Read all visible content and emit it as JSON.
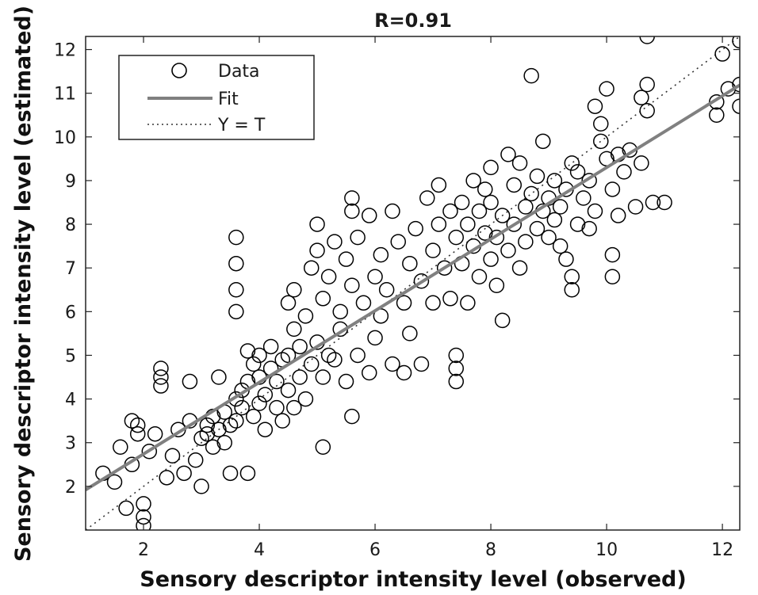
{
  "chart_data": {
    "type": "scatter",
    "title": "R=0.91",
    "xlabel": "Sensory descriptor intensity level (observed)",
    "ylabel": "Sensory descriptor intensity level (estimated)",
    "xlim": [
      1,
      12.3
    ],
    "ylim": [
      1,
      12.3
    ],
    "xticks": [
      2,
      4,
      6,
      8,
      10,
      12
    ],
    "yticks": [
      2,
      3,
      4,
      5,
      6,
      7,
      8,
      9,
      10,
      11,
      12
    ],
    "grid": false,
    "legend": {
      "placement": "top-left",
      "entries": [
        "Data",
        "Fit",
        "Y = T"
      ]
    },
    "fit_line": {
      "slope": 0.82,
      "intercept": 1.1,
      "color": "#808080"
    },
    "identity_line": {
      "color": "#333333",
      "style": "dotted"
    },
    "marker_color": "#000000",
    "series": [
      {
        "name": "Data",
        "points": [
          [
            1.3,
            2.3
          ],
          [
            1.5,
            2.1
          ],
          [
            1.6,
            2.9
          ],
          [
            1.7,
            1.5
          ],
          [
            1.8,
            2.5
          ],
          [
            1.9,
            3.2
          ],
          [
            2.0,
            1.6
          ],
          [
            2.0,
            1.1
          ],
          [
            2.0,
            1.3
          ],
          [
            1.8,
            3.5
          ],
          [
            1.9,
            3.4
          ],
          [
            2.1,
            2.8
          ],
          [
            2.2,
            3.2
          ],
          [
            2.3,
            4.3
          ],
          [
            2.3,
            4.5
          ],
          [
            2.3,
            4.7
          ],
          [
            2.4,
            2.2
          ],
          [
            2.5,
            2.7
          ],
          [
            2.6,
            3.3
          ],
          [
            2.7,
            2.3
          ],
          [
            2.8,
            3.5
          ],
          [
            2.8,
            4.4
          ],
          [
            2.9,
            2.6
          ],
          [
            3.0,
            3.1
          ],
          [
            3.0,
            2.0
          ],
          [
            3.1,
            3.4
          ],
          [
            3.1,
            3.2
          ],
          [
            3.2,
            3.6
          ],
          [
            3.2,
            2.9
          ],
          [
            3.3,
            3.3
          ],
          [
            3.3,
            4.5
          ],
          [
            3.4,
            3.0
          ],
          [
            3.4,
            3.7
          ],
          [
            3.5,
            3.4
          ],
          [
            3.5,
            2.3
          ],
          [
            3.6,
            4.0
          ],
          [
            3.6,
            3.5
          ],
          [
            3.6,
            6.0
          ],
          [
            3.6,
            6.5
          ],
          [
            3.6,
            7.1
          ],
          [
            3.6,
            7.7
          ],
          [
            3.7,
            4.2
          ],
          [
            3.7,
            3.8
          ],
          [
            3.8,
            4.4
          ],
          [
            3.8,
            5.1
          ],
          [
            3.8,
            2.3
          ],
          [
            3.9,
            3.6
          ],
          [
            3.9,
            4.8
          ],
          [
            4.0,
            3.9
          ],
          [
            4.0,
            4.5
          ],
          [
            4.0,
            5.0
          ],
          [
            4.1,
            3.3
          ],
          [
            4.1,
            4.1
          ],
          [
            4.2,
            4.7
          ],
          [
            4.2,
            5.2
          ],
          [
            4.3,
            3.8
          ],
          [
            4.3,
            4.4
          ],
          [
            4.4,
            4.9
          ],
          [
            4.4,
            3.5
          ],
          [
            4.5,
            4.2
          ],
          [
            4.5,
            5.0
          ],
          [
            4.5,
            6.2
          ],
          [
            4.6,
            3.8
          ],
          [
            4.6,
            5.6
          ],
          [
            4.6,
            6.5
          ],
          [
            4.7,
            4.5
          ],
          [
            4.7,
            5.2
          ],
          [
            4.8,
            5.9
          ],
          [
            4.8,
            4.0
          ],
          [
            4.9,
            4.8
          ],
          [
            4.9,
            7.0
          ],
          [
            5.0,
            5.3
          ],
          [
            5.0,
            7.4
          ],
          [
            5.0,
            8.0
          ],
          [
            5.1,
            4.5
          ],
          [
            5.1,
            6.3
          ],
          [
            5.1,
            2.9
          ],
          [
            5.2,
            6.8
          ],
          [
            5.2,
            5.0
          ],
          [
            5.3,
            4.9
          ],
          [
            5.3,
            7.6
          ],
          [
            5.4,
            6.0
          ],
          [
            5.4,
            5.6
          ],
          [
            5.5,
            4.4
          ],
          [
            5.5,
            7.2
          ],
          [
            5.6,
            6.6
          ],
          [
            5.6,
            8.3
          ],
          [
            5.6,
            8.6
          ],
          [
            5.6,
            3.6
          ],
          [
            5.7,
            5.0
          ],
          [
            5.7,
            7.7
          ],
          [
            5.8,
            6.2
          ],
          [
            5.9,
            4.6
          ],
          [
            5.9,
            8.2
          ],
          [
            6.0,
            6.8
          ],
          [
            6.0,
            5.4
          ],
          [
            6.1,
            7.3
          ],
          [
            6.1,
            5.9
          ],
          [
            6.2,
            6.5
          ],
          [
            6.3,
            8.3
          ],
          [
            6.3,
            4.8
          ],
          [
            6.4,
            7.6
          ],
          [
            6.5,
            6.2
          ],
          [
            6.5,
            4.6
          ],
          [
            6.6,
            7.1
          ],
          [
            6.6,
            5.5
          ],
          [
            6.7,
            7.9
          ],
          [
            6.8,
            6.7
          ],
          [
            6.8,
            4.8
          ],
          [
            6.9,
            8.6
          ],
          [
            7.0,
            7.4
          ],
          [
            7.0,
            6.2
          ],
          [
            7.1,
            8.0
          ],
          [
            7.1,
            8.9
          ],
          [
            7.2,
            7.0
          ],
          [
            7.3,
            6.3
          ],
          [
            7.3,
            8.3
          ],
          [
            7.4,
            7.7
          ],
          [
            7.4,
            4.4
          ],
          [
            7.4,
            4.7
          ],
          [
            7.4,
            5.0
          ],
          [
            7.5,
            8.5
          ],
          [
            7.5,
            7.1
          ],
          [
            7.6,
            6.2
          ],
          [
            7.6,
            8.0
          ],
          [
            7.7,
            7.5
          ],
          [
            7.7,
            9.0
          ],
          [
            7.8,
            8.3
          ],
          [
            7.8,
            6.8
          ],
          [
            7.9,
            7.8
          ],
          [
            7.9,
            8.8
          ],
          [
            8.0,
            7.2
          ],
          [
            8.0,
            8.5
          ],
          [
            8.0,
            9.3
          ],
          [
            8.1,
            7.7
          ],
          [
            8.1,
            6.6
          ],
          [
            8.2,
            8.2
          ],
          [
            8.2,
            5.8
          ],
          [
            8.3,
            9.6
          ],
          [
            8.3,
            7.4
          ],
          [
            8.4,
            8.9
          ],
          [
            8.4,
            8.0
          ],
          [
            8.5,
            7.0
          ],
          [
            8.5,
            9.4
          ],
          [
            8.6,
            8.4
          ],
          [
            8.6,
            7.6
          ],
          [
            8.7,
            11.4
          ],
          [
            8.7,
            8.7
          ],
          [
            8.8,
            7.9
          ],
          [
            8.8,
            9.1
          ],
          [
            8.9,
            8.3
          ],
          [
            8.9,
            9.9
          ],
          [
            9.0,
            7.7
          ],
          [
            9.0,
            8.6
          ],
          [
            9.1,
            8.1
          ],
          [
            9.1,
            9.0
          ],
          [
            9.2,
            7.5
          ],
          [
            9.2,
            8.4
          ],
          [
            9.3,
            8.8
          ],
          [
            9.3,
            7.2
          ],
          [
            9.4,
            6.5
          ],
          [
            9.4,
            6.8
          ],
          [
            9.4,
            9.4
          ],
          [
            9.5,
            8.0
          ],
          [
            9.5,
            9.2
          ],
          [
            9.6,
            8.6
          ],
          [
            9.7,
            7.9
          ],
          [
            9.7,
            9.0
          ],
          [
            9.8,
            8.3
          ],
          [
            9.8,
            10.7
          ],
          [
            9.9,
            10.3
          ],
          [
            9.9,
            9.9
          ],
          [
            10.0,
            9.5
          ],
          [
            10.0,
            11.1
          ],
          [
            10.1,
            6.8
          ],
          [
            10.1,
            7.3
          ],
          [
            10.1,
            8.8
          ],
          [
            10.2,
            9.6
          ],
          [
            10.2,
            8.2
          ],
          [
            10.3,
            9.2
          ],
          [
            10.4,
            9.7
          ],
          [
            10.5,
            8.4
          ],
          [
            10.6,
            9.4
          ],
          [
            10.6,
            10.9
          ],
          [
            10.7,
            10.6
          ],
          [
            10.7,
            12.3
          ],
          [
            10.7,
            11.2
          ],
          [
            10.8,
            8.5
          ],
          [
            11.0,
            8.5
          ],
          [
            11.9,
            10.5
          ],
          [
            11.9,
            10.8
          ],
          [
            12.0,
            11.9
          ],
          [
            12.1,
            11.1
          ],
          [
            12.3,
            10.7
          ],
          [
            12.3,
            11.2
          ],
          [
            12.3,
            12.2
          ]
        ]
      }
    ]
  }
}
